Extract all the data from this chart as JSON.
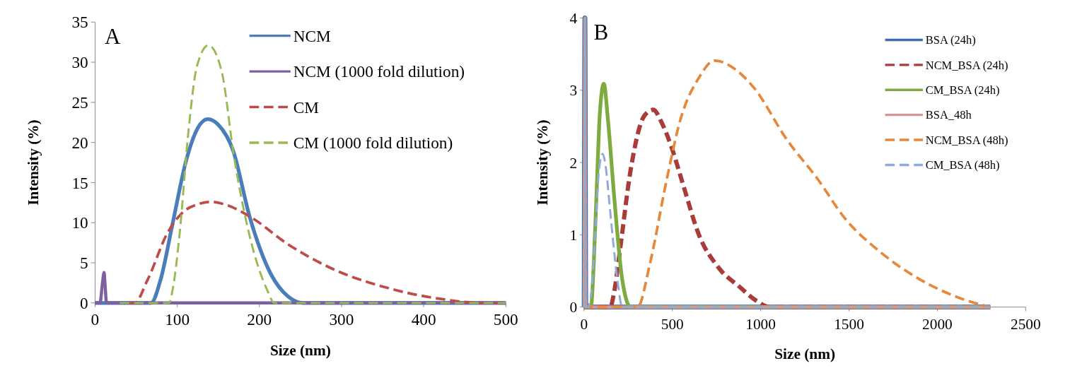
{
  "chart_data": [
    {
      "type": "line",
      "title": "A",
      "xlabel": "Size (nm)",
      "ylabel": "Intensity (%)",
      "xlim": [
        0,
        500
      ],
      "xticks": [
        0,
        100,
        200,
        300,
        400,
        500
      ],
      "ylim": [
        0,
        35
      ],
      "yticks": [
        0,
        5,
        10,
        15,
        20,
        25,
        30,
        35
      ],
      "grid": false,
      "legend": "top right",
      "marker": "none",
      "series": [
        {
          "name": "NCM",
          "color": "#4a7ebb",
          "line_style": "solid",
          "x": [
            0,
            68,
            80,
            94,
            111,
            125,
            137,
            150,
            168,
            188,
            214,
            235,
            253,
            500
          ],
          "values": [
            0,
            0,
            3,
            9.7,
            17.8,
            21.8,
            22.9,
            22.2,
            19,
            10.8,
            3.6,
            0.8,
            0,
            0
          ]
        },
        {
          "name": "NCM (1000 fold dilution)",
          "color": "#7d60a0",
          "line_style": "solid",
          "x": [
            0,
            6,
            9,
            11,
            12,
            14,
            500
          ],
          "values": [
            0,
            0,
            2.5,
            3.8,
            2.5,
            0,
            0
          ]
        },
        {
          "name": "CM",
          "color": "#be4b48",
          "line_style": "dashed",
          "x": [
            40,
            48,
            64,
            88,
            108,
            125,
            141,
            160,
            188,
            235,
            288,
            355,
            421,
            472,
            500
          ],
          "values": [
            0,
            0,
            2.9,
            8.7,
            11.4,
            12.3,
            12.6,
            12.2,
            10.8,
            7.3,
            4.3,
            1.9,
            0.5,
            0,
            0
          ]
        },
        {
          "name": "CM (1000 fold dilution)",
          "color": "#98b954",
          "line_style": "dashed",
          "x": [
            30,
            90,
            95,
            103,
            113,
            124,
            138,
            154,
            169,
            188,
            210,
            218,
            500
          ],
          "values": [
            0,
            0,
            2,
            8.7,
            20.7,
            29.5,
            32.1,
            28.9,
            18.3,
            8.4,
            1.5,
            0,
            0
          ]
        }
      ]
    },
    {
      "type": "line",
      "title": "B",
      "xlabel": "Size (nm)",
      "ylabel": "Intensity (%)",
      "xlim": [
        0,
        2500
      ],
      "xticks": [
        0,
        500,
        1000,
        1500,
        2000,
        2500
      ],
      "ylim": [
        0,
        4
      ],
      "yticks": [
        0,
        1,
        2,
        3,
        4
      ],
      "grid": false,
      "legend": "top right",
      "marker": "none",
      "series": [
        {
          "name": "BSA (24h)",
          "color": "#3c6eb4",
          "line_style": "solid",
          "x": [
            1,
            5,
            10,
            2300
          ],
          "values": [
            0,
            4,
            0,
            0
          ]
        },
        {
          "name": "NCM_BSA (24h)",
          "color": "#a83c3a",
          "line_style": "dashed",
          "x": [
            0,
            148,
            170,
            202,
            264,
            342,
            392,
            440,
            497,
            560,
            652,
            760,
            885,
            980,
            1050,
            2300
          ],
          "values": [
            0,
            0,
            0.2,
            0.76,
            1.9,
            2.65,
            2.73,
            2.55,
            2.2,
            1.7,
            0.99,
            0.55,
            0.27,
            0.08,
            0,
            0
          ]
        },
        {
          "name": "CM_BSA (24h)",
          "color": "#7eab3f",
          "line_style": "solid",
          "x": [
            0,
            39,
            55,
            70,
            90,
            112,
            135,
            171,
            215,
            264,
            2300
          ],
          "values": [
            0,
            0,
            0.6,
            1.52,
            2.7,
            3.09,
            2.6,
            1.52,
            0.4,
            0,
            0
          ]
        },
        {
          "name": "BSA_48h",
          "color": "#d99694",
          "line_style": "solid",
          "x": [
            1,
            5,
            10,
            2300
          ],
          "values": [
            0,
            4,
            0,
            0
          ]
        },
        {
          "name": "NCM_BSA (48h)",
          "color": "#e6873a",
          "line_style": "dashed",
          "x": [
            1,
            5,
            10,
            303,
            373,
            466,
            544,
            652,
            738,
            850,
            963,
            1150,
            1320,
            1476,
            1678,
            1903,
            2144,
            2300
          ],
          "values": [
            0,
            4,
            0,
            0,
            0.6,
            1.74,
            2.58,
            3.18,
            3.41,
            3.3,
            3.03,
            2.31,
            1.78,
            1.23,
            0.76,
            0.38,
            0.11,
            0
          ]
        },
        {
          "name": "CM_BSA (48h)",
          "color": "#8eaad6",
          "line_style": "dashed",
          "x": [
            1,
            5,
            10,
            23,
            45,
            62,
            85,
            105,
            125,
            145,
            163,
            190,
            217,
            2300
          ],
          "values": [
            0,
            4,
            0,
            0,
            0.3,
            0.95,
            1.9,
            2.12,
            1.9,
            1.4,
            0.95,
            0.35,
            0,
            0
          ]
        }
      ]
    }
  ]
}
